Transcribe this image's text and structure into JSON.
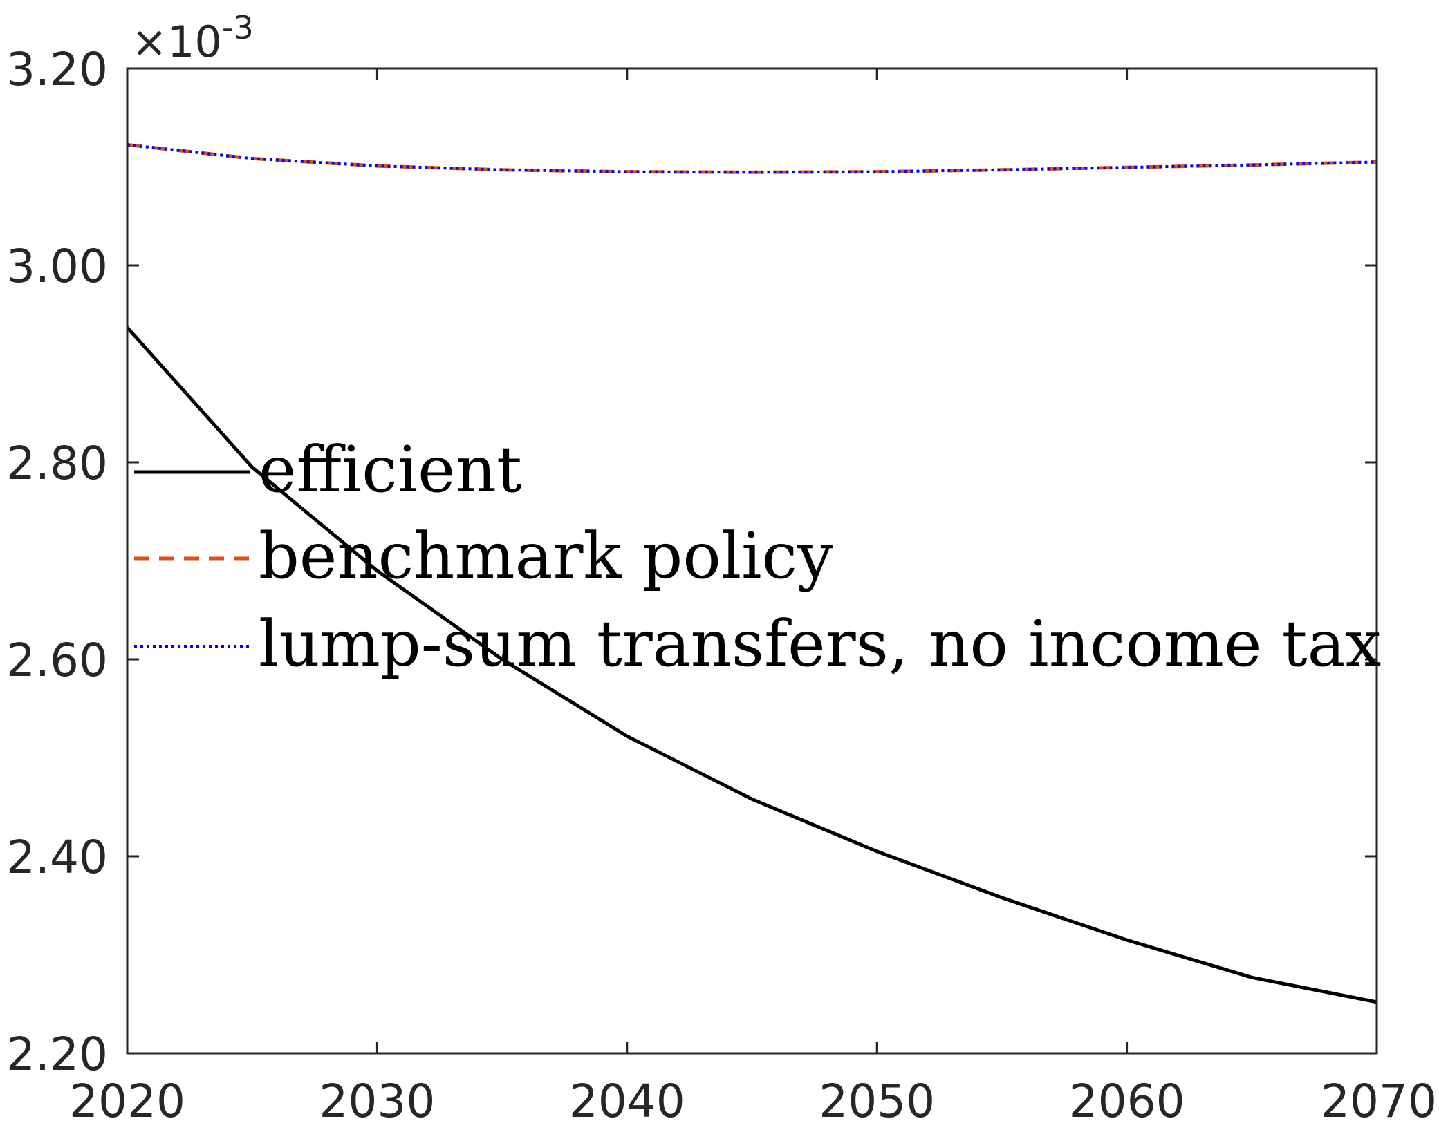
{
  "chart_data": {
    "type": "line",
    "x": [
      2020,
      2025,
      2030,
      2035,
      2040,
      2045,
      2050,
      2055,
      2060,
      2065,
      2070
    ],
    "series": [
      {
        "name": "efficient",
        "color": "#000000",
        "style": "solid",
        "values": [
          2.937,
          2.795,
          2.69,
          2.6,
          2.522,
          2.458,
          2.405,
          2.358,
          2.315,
          2.277,
          2.252
        ]
      },
      {
        "name": "benchmark policy",
        "color": "#D95319",
        "style": "dashed",
        "values": [
          3.1225,
          3.1085,
          3.101,
          3.097,
          3.095,
          3.0945,
          3.095,
          3.097,
          3.0995,
          3.102,
          3.105
        ]
      },
      {
        "name": "lump-sum transfers, no income tax",
        "color": "#0000FF",
        "style": "dotted",
        "values": [
          3.1225,
          3.1085,
          3.101,
          3.097,
          3.095,
          3.0945,
          3.095,
          3.097,
          3.0995,
          3.102,
          3.105
        ]
      }
    ],
    "xlim": [
      2020,
      2070
    ],
    "ylim": [
      2.2,
      3.2
    ],
    "x_ticks": [
      "2020",
      "2030",
      "2040",
      "2050",
      "2060",
      "2070"
    ],
    "y_ticks": [
      "2.20",
      "2.40",
      "2.60",
      "2.80",
      "3.00",
      "3.20"
    ],
    "y_multiplier": {
      "base": "×10",
      "exponent": "-3"
    },
    "grid": false,
    "legend": "center-left"
  }
}
